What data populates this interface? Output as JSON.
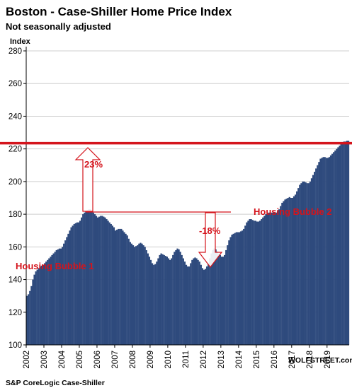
{
  "title": "Boston - Case-Shiller Home Price Index",
  "subtitle": "Not seasonally adjusted",
  "source": "S&P CoreLogic Case-Shiller",
  "watermark": "WOLFSTREET.com",
  "colors": {
    "bar": "#2e4a7d",
    "accent": "#d4141c",
    "grid": "#cfcfcf"
  },
  "annotations": {
    "bubble1": "Housing Bubble 1",
    "bubble2": "Housing Bubble 2",
    "pct_up": "23%",
    "pct_down": "-18%"
  },
  "chart_data": {
    "type": "bar",
    "ylabel": "Index",
    "ylim": [
      100,
      280
    ],
    "yticks": [
      100,
      120,
      140,
      160,
      180,
      200,
      220,
      240,
      260,
      280
    ],
    "xticks": [
      "2002",
      "2003",
      "2004",
      "2005",
      "2006",
      "2007",
      "2008",
      "2009",
      "2010",
      "2011",
      "2012",
      "2013",
      "2014",
      "2015",
      "2016",
      "2017",
      "2018",
      "2019"
    ],
    "x_start": "2002-01",
    "frequency": "monthly",
    "reference_line": 223.5,
    "values": [
      130,
      131,
      133,
      136,
      140,
      143,
      145,
      146,
      147,
      148,
      148.5,
      149,
      150,
      151,
      152,
      153,
      154,
      155,
      156,
      157,
      158,
      158.5,
      159,
      159,
      160,
      162,
      164,
      166,
      168,
      170,
      172,
      173,
      174,
      174.5,
      175,
      175,
      176,
      178,
      180,
      181,
      182,
      182.5,
      183,
      183,
      182,
      181,
      180,
      179,
      178,
      178.5,
      179,
      179,
      178.5,
      178,
      177,
      176,
      175,
      174,
      173,
      172,
      170,
      170.5,
      171,
      171,
      171,
      170,
      169,
      168,
      167,
      165,
      163,
      162,
      161,
      160,
      160.5,
      161,
      162,
      162.5,
      162,
      161,
      160,
      158,
      156,
      154,
      152,
      150,
      149,
      149.5,
      151,
      153,
      155,
      156,
      155.5,
      155,
      154.5,
      154,
      153,
      152,
      153,
      155,
      157,
      158,
      159,
      158.5,
      157,
      155,
      153,
      151,
      149,
      148,
      148,
      150,
      152,
      153,
      153.5,
      153,
      152,
      151,
      149,
      147,
      146,
      146.5,
      148,
      150,
      153,
      156,
      158,
      159,
      158.5,
      157,
      156,
      155,
      154,
      154,
      155,
      158,
      161,
      164,
      166,
      167.5,
      168,
      168.5,
      169,
      169,
      169,
      169.5,
      170,
      171,
      173,
      175,
      176,
      177,
      177,
      176.5,
      176,
      176,
      175.5,
      175.5,
      176,
      177,
      178,
      179,
      180,
      180.5,
      181,
      181,
      181,
      181,
      181,
      181,
      182,
      183,
      185,
      187,
      188,
      189,
      189.5,
      190,
      190.5,
      190,
      190,
      191,
      192,
      194,
      196,
      198,
      199,
      200,
      200,
      199.5,
      199,
      199,
      200,
      202,
      204,
      206,
      208,
      210,
      212,
      214,
      214.5,
      215,
      215,
      214.5,
      214.5,
      215,
      216,
      217,
      218,
      219,
      220,
      221,
      222,
      223,
      224,
      224.5,
      224.5,
      225,
      225
    ]
  }
}
